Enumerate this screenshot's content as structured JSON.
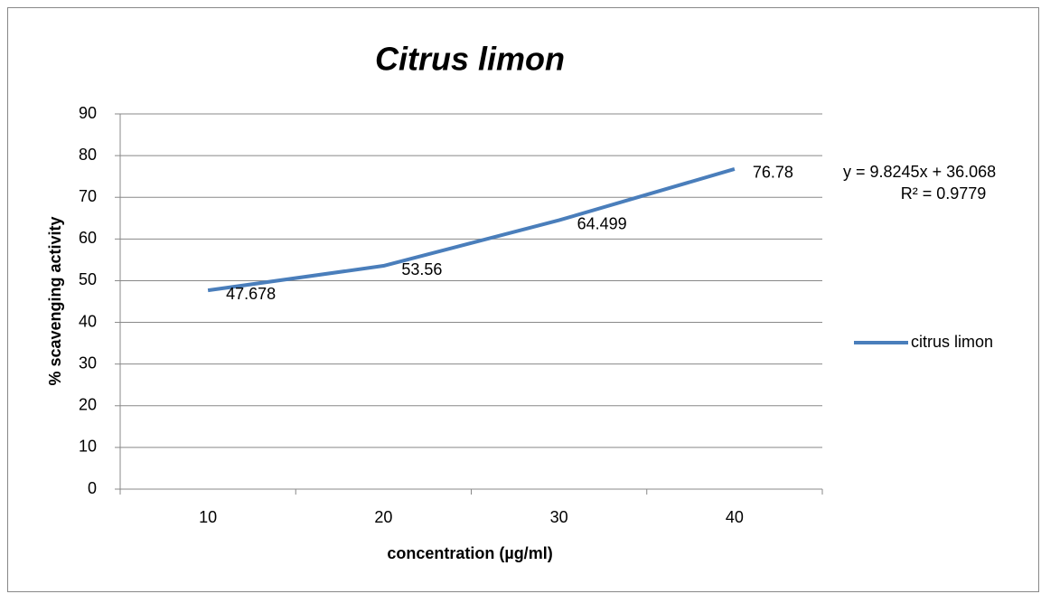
{
  "chart_data": {
    "type": "line",
    "title": "Citrus limon",
    "x_label": "concentration (µg/ml)",
    "y_label": "% scavenging activity",
    "categories": [
      "10",
      "20",
      "30",
      "40"
    ],
    "series": [
      {
        "name": "citrus limon",
        "color": "#4a7ebb",
        "values": [
          47.678,
          53.56,
          64.499,
          76.78
        ]
      }
    ],
    "ylim": [
      0,
      90
    ],
    "yticks": [
      0,
      10,
      20,
      30,
      40,
      50,
      60,
      70,
      80,
      90
    ],
    "grid": true,
    "legend": "right",
    "annotations": [
      "y = 9.8245x + 36.068",
      "R² = 0.9779"
    ]
  }
}
